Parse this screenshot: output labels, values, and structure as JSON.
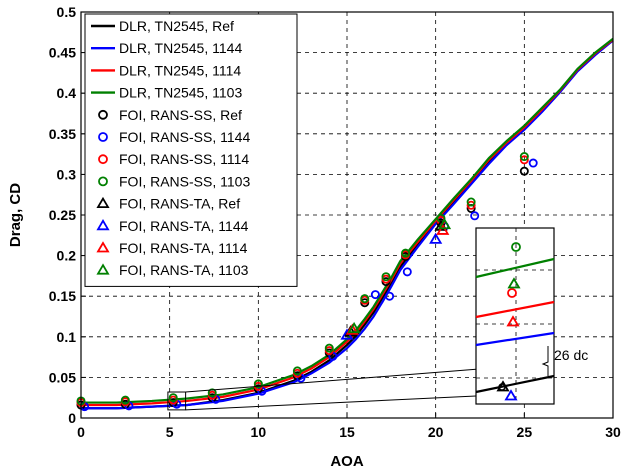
{
  "chart_data": {
    "type": "line",
    "xlabel": "AOA",
    "ylabel": "Drag, CD",
    "xlim": [
      0,
      30
    ],
    "ylim": [
      0,
      0.5
    ],
    "x_ticks": [
      "0",
      "5",
      "10",
      "15",
      "20",
      "25",
      "30"
    ],
    "y_ticks": [
      "0",
      "0.05",
      "0.1",
      "0.15",
      "0.2",
      "0.25",
      "0.3",
      "0.35",
      "0.4",
      "0.45",
      "0.5"
    ],
    "grid": true,
    "legend_position": "top-left",
    "annotation": "26 dc",
    "series": [
      {
        "name": "DLR, TN2545, Ref",
        "kind": "line",
        "color": "#000000",
        "x": [
          0,
          2,
          4,
          6,
          8,
          10,
          12,
          13,
          14,
          15,
          15.5,
          16,
          16.5,
          17,
          17.5,
          18,
          19,
          20,
          21,
          22,
          23,
          24,
          25,
          26,
          27,
          28,
          29,
          30
        ],
        "y": [
          0.012,
          0.012,
          0.014,
          0.016,
          0.022,
          0.031,
          0.046,
          0.057,
          0.071,
          0.09,
          0.101,
          0.115,
          0.13,
          0.148,
          0.166,
          0.186,
          0.214,
          0.241,
          0.265,
          0.29,
          0.315,
          0.337,
          0.356,
          0.378,
          0.402,
          0.428,
          0.448,
          0.465
        ]
      },
      {
        "name": "DLR, TN2545, 1144",
        "kind": "line",
        "color": "#0000ff",
        "x": [
          0,
          2,
          4,
          6,
          8,
          10,
          12,
          13,
          14,
          15,
          15.5,
          16,
          16.5,
          17,
          17.5,
          18,
          19,
          20,
          21,
          22,
          23,
          24,
          25,
          26,
          27,
          28,
          29,
          30
        ],
        "y": [
          0.012,
          0.012,
          0.014,
          0.016,
          0.021,
          0.03,
          0.044,
          0.055,
          0.068,
          0.086,
          0.097,
          0.11,
          0.125,
          0.143,
          0.162,
          0.182,
          0.211,
          0.239,
          0.263,
          0.288,
          0.313,
          0.336,
          0.355,
          0.377,
          0.401,
          0.427,
          0.447,
          0.465
        ]
      },
      {
        "name": "DLR, TN2545, 1114",
        "kind": "line",
        "color": "#ff0000",
        "x": [
          0,
          2,
          4,
          6,
          8,
          10,
          12,
          13,
          14,
          15,
          15.5,
          16,
          16.5,
          17,
          17.5,
          18,
          19,
          20,
          21,
          22,
          23,
          24,
          25,
          26,
          27,
          28,
          29,
          30
        ],
        "y": [
          0.016,
          0.016,
          0.018,
          0.021,
          0.026,
          0.035,
          0.05,
          0.061,
          0.075,
          0.094,
          0.105,
          0.119,
          0.134,
          0.152,
          0.17,
          0.19,
          0.217,
          0.243,
          0.268,
          0.292,
          0.318,
          0.339,
          0.358,
          0.38,
          0.403,
          0.429,
          0.449,
          0.466
        ]
      },
      {
        "name": "DLR, TN2545, 1103",
        "kind": "line",
        "color": "#008000",
        "x": [
          0,
          2,
          4,
          6,
          8,
          10,
          12,
          13,
          14,
          15,
          15.5,
          16,
          16.5,
          17,
          17.5,
          18,
          19,
          20,
          21,
          22,
          23,
          24,
          25,
          26,
          27,
          28,
          29,
          30
        ],
        "y": [
          0.019,
          0.019,
          0.021,
          0.024,
          0.029,
          0.038,
          0.053,
          0.064,
          0.078,
          0.097,
          0.108,
          0.122,
          0.137,
          0.155,
          0.173,
          0.193,
          0.22,
          0.245,
          0.27,
          0.294,
          0.32,
          0.341,
          0.36,
          0.382,
          0.404,
          0.43,
          0.45,
          0.467
        ]
      },
      {
        "name": "FOI, RANS-SS, Ref",
        "kind": "circle",
        "color": "#000000",
        "x": [
          0,
          2.5,
          5.2,
          7.4,
          10,
          12.2,
          14,
          16,
          17.2,
          18.3,
          20.3,
          22,
          25
        ],
        "y": [
          0.016,
          0.017,
          0.019,
          0.025,
          0.036,
          0.052,
          0.08,
          0.142,
          0.168,
          0.199,
          0.24,
          0.258,
          0.304
        ]
      },
      {
        "name": "FOI, RANS-SS, 1144",
        "kind": "circle",
        "color": "#0000ff",
        "x": [
          0.2,
          2.7,
          5.4,
          7.6,
          10.2,
          12.4,
          14.2,
          16.6,
          17.4,
          18.4,
          20.5,
          22.2,
          25.5
        ],
        "y": [
          0.014,
          0.015,
          0.017,
          0.023,
          0.033,
          0.049,
          0.076,
          0.152,
          0.15,
          0.18,
          0.236,
          0.249,
          0.314
        ]
      },
      {
        "name": "FOI, RANS-SS, 1114",
        "kind": "circle",
        "color": "#ff0000",
        "x": [
          0,
          2.5,
          5.2,
          7.4,
          10,
          12.2,
          14,
          16,
          17.2,
          18.3,
          20.3,
          22,
          25
        ],
        "y": [
          0.019,
          0.02,
          0.022,
          0.028,
          0.039,
          0.055,
          0.083,
          0.145,
          0.171,
          0.201,
          0.243,
          0.262,
          0.318
        ]
      },
      {
        "name": "FOI, RANS-SS, 1103",
        "kind": "circle",
        "color": "#008000",
        "x": [
          0,
          2.5,
          5.2,
          7.4,
          10,
          12.2,
          14,
          16,
          17.2,
          18.3,
          20.3,
          22,
          25
        ],
        "y": [
          0.021,
          0.022,
          0.025,
          0.031,
          0.042,
          0.058,
          0.086,
          0.147,
          0.174,
          0.203,
          0.246,
          0.266,
          0.322
        ]
      },
      {
        "name": "FOI, RANS-TA, Ref",
        "kind": "triangle",
        "color": "#000000",
        "x": [
          15.2,
          20.3
        ],
        "y": [
          0.106,
          0.236
        ]
      },
      {
        "name": "FOI, RANS-TA, 1144",
        "kind": "triangle",
        "color": "#0000ff",
        "x": [
          15.0,
          20.0
        ],
        "y": [
          0.102,
          0.22
        ]
      },
      {
        "name": "FOI, RANS-TA, 1114",
        "kind": "triangle",
        "color": "#ff0000",
        "x": [
          15.3,
          20.4
        ],
        "y": [
          0.108,
          0.231
        ]
      },
      {
        "name": "FOI, RANS-TA, 1103",
        "kind": "triangle",
        "color": "#008000",
        "x": [
          15.4,
          20.5
        ],
        "y": [
          0.11,
          0.238
        ]
      }
    ]
  }
}
